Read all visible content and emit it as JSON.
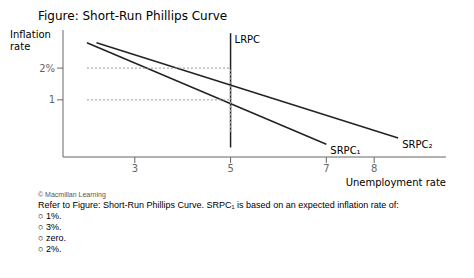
{
  "chart_data": {
    "type": "line",
    "title": "Figure: Short-Run Phillips Curve",
    "xlabel": "Unemployment rate",
    "ylabel": "Inflation\nrate",
    "xlim": [
      1.5,
      9.5
    ],
    "ylim": [
      -0.8,
      3.2
    ],
    "xticks": [
      3,
      5,
      7,
      8
    ],
    "yticks": [
      1,
      {
        "value": 2,
        "label": "2%"
      }
    ],
    "grid": false,
    "series": [
      {
        "name": "LRPC",
        "color": "#222222",
        "x": [
          5,
          5
        ],
        "values": [
          -0.5,
          3.1
        ]
      },
      {
        "name": "SRPC₂",
        "color": "#222222",
        "x": [
          2.2,
          8.5
        ],
        "values": [
          2.8,
          -0.2
        ]
      },
      {
        "name": "SRPC₁",
        "color": "#222222",
        "x": [
          2.0,
          7.0
        ],
        "values": [
          2.8,
          -0.4
        ]
      },
      {
        "color": "#999999",
        "line_style": "dotted",
        "x": [
          2.0,
          5
        ],
        "values": [
          2,
          2
        ]
      },
      {
        "color": "#999999",
        "line_style": "dotted",
        "x": [
          5,
          5
        ],
        "values": [
          0,
          2
        ]
      },
      {
        "color": "#999999",
        "line_style": "dotted",
        "x": [
          2.0,
          5
        ],
        "values": [
          1,
          1
        ]
      },
      {
        "color": "#999999",
        "line_style": "dotted",
        "x": [
          5,
          5
        ],
        "values": [
          0,
          1
        ]
      }
    ],
    "annotations": [
      "© Macmillan Learning",
      "Refer to Figure: Short-Run Phillips Curve. SRPC₁ is based on an expected inflation rate of:",
      "○ 1%.",
      "○ 3%.",
      "○ zero.",
      "○ 2%."
    ]
  }
}
